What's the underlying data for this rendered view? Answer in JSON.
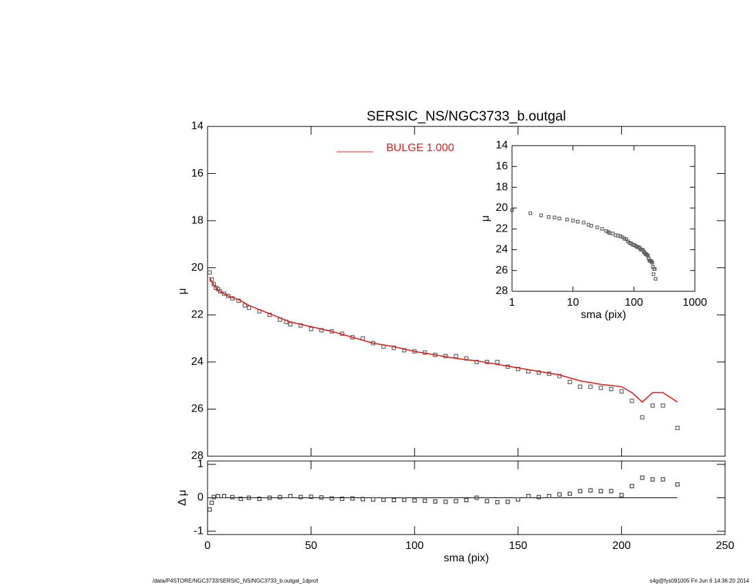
{
  "chart_data": [
    {
      "type": "scatter",
      "title": "SERSIC_NS/NGC3733_b.outgal",
      "ylabel": "μ",
      "xlim": [
        0,
        250
      ],
      "ylim": [
        28,
        14
      ],
      "yticks": [
        14,
        16,
        18,
        20,
        22,
        24,
        26,
        28
      ],
      "series": [
        {
          "color": "#606060",
          "x": [
            1,
            2,
            3,
            4,
            5,
            6,
            8,
            10,
            12,
            15,
            18,
            20,
            25,
            30,
            35,
            38,
            40,
            45,
            50,
            55,
            60,
            65,
            70,
            75,
            80,
            85,
            90,
            95,
            100,
            105,
            110,
            115,
            120,
            125,
            130,
            135,
            140,
            145,
            150,
            155,
            160,
            165,
            170,
            175,
            180,
            185,
            190,
            195,
            200,
            205,
            210,
            215,
            220,
            227
          ],
          "values": [
            20.2,
            20.5,
            20.7,
            20.85,
            20.9,
            21.0,
            21.1,
            21.2,
            21.3,
            21.4,
            21.6,
            21.7,
            21.85,
            22.0,
            22.2,
            22.3,
            22.4,
            22.45,
            22.6,
            22.65,
            22.7,
            22.8,
            22.95,
            23.0,
            23.2,
            23.35,
            23.4,
            23.5,
            23.55,
            23.6,
            23.7,
            23.75,
            23.75,
            23.85,
            24.0,
            24.0,
            24.0,
            24.2,
            24.3,
            24.4,
            24.45,
            24.5,
            24.6,
            24.85,
            25.05,
            25.05,
            25.1,
            25.15,
            25.25,
            25.65,
            26.35,
            25.85,
            25.85,
            26.8
          ]
        },
        {
          "name": "BULGE  1.000",
          "type": "line",
          "color": "#e0201b",
          "x": [
            1,
            2,
            5,
            10,
            15,
            20,
            30,
            40,
            50,
            60,
            70,
            80,
            90,
            100,
            110,
            120,
            130,
            140,
            150,
            160,
            170,
            180,
            190,
            200,
            205,
            210,
            215,
            220,
            227
          ],
          "values": [
            20.4,
            20.6,
            20.95,
            21.2,
            21.35,
            21.6,
            21.95,
            22.3,
            22.5,
            22.7,
            22.95,
            23.2,
            23.35,
            23.55,
            23.7,
            23.85,
            23.95,
            24.1,
            24.25,
            24.4,
            24.55,
            24.8,
            24.95,
            25.05,
            25.3,
            25.7,
            25.3,
            25.3,
            25.7
          ]
        }
      ]
    },
    {
      "type": "scatter",
      "xlabel": "sma (pix)",
      "ylabel": "Δ μ",
      "xlim": [
        0,
        250
      ],
      "xticks": [
        0,
        50,
        100,
        150,
        200,
        250
      ],
      "ylim": [
        -1.1,
        1.1
      ],
      "yticks": [
        -1,
        0,
        1
      ],
      "series": [
        {
          "color": "#404040",
          "x": [
            1,
            2,
            3,
            5,
            8,
            12,
            16,
            20,
            25,
            30,
            35,
            40,
            45,
            50,
            55,
            60,
            65,
            70,
            75,
            80,
            85,
            90,
            95,
            100,
            105,
            110,
            115,
            120,
            125,
            130,
            135,
            140,
            145,
            150,
            155,
            160,
            165,
            170,
            175,
            180,
            185,
            190,
            195,
            200,
            205,
            210,
            215,
            220,
            227
          ],
          "values": [
            -0.35,
            -0.15,
            0.02,
            0.05,
            0.05,
            0.02,
            -0.03,
            0.0,
            -0.03,
            0.0,
            0.02,
            0.05,
            0.02,
            0.03,
            0.01,
            -0.02,
            -0.03,
            -0.02,
            -0.04,
            -0.05,
            -0.06,
            -0.07,
            -0.06,
            -0.08,
            -0.09,
            -0.11,
            -0.12,
            -0.1,
            -0.07,
            0.0,
            -0.1,
            -0.13,
            -0.12,
            -0.05,
            0.05,
            0.02,
            0.05,
            0.1,
            0.12,
            0.2,
            0.22,
            0.2,
            0.2,
            0.08,
            0.35,
            0.6,
            0.55,
            0.55,
            0.4
          ]
        }
      ]
    },
    {
      "type": "scatter",
      "xlabel": "sma (pix)",
      "ylabel": "μ",
      "xscale": "log",
      "xlim": [
        1,
        1000
      ],
      "xticks": [
        1,
        10,
        100,
        1000
      ],
      "ylim": [
        28,
        14
      ],
      "yticks": [
        14,
        16,
        18,
        20,
        22,
        24,
        26,
        28
      ],
      "series": [
        {
          "color": "#606060",
          "x": [
            1,
            2,
            3,
            4,
            5,
            6,
            8,
            10,
            12,
            15,
            18,
            20,
            25,
            30,
            35,
            38,
            40,
            45,
            50,
            55,
            60,
            65,
            70,
            75,
            80,
            85,
            90,
            95,
            100,
            105,
            110,
            115,
            120,
            125,
            130,
            135,
            140,
            145,
            150,
            155,
            160,
            165,
            170,
            175,
            180,
            185,
            190,
            195,
            200,
            205,
            210,
            215,
            220,
            227
          ],
          "values": [
            20.2,
            20.5,
            20.7,
            20.85,
            20.9,
            21.0,
            21.1,
            21.2,
            21.3,
            21.4,
            21.6,
            21.7,
            21.85,
            22.0,
            22.2,
            22.3,
            22.4,
            22.45,
            22.6,
            22.65,
            22.7,
            22.8,
            22.95,
            23.0,
            23.2,
            23.35,
            23.4,
            23.5,
            23.55,
            23.6,
            23.7,
            23.75,
            23.75,
            23.85,
            24.0,
            24.0,
            24.0,
            24.2,
            24.3,
            24.4,
            24.45,
            24.5,
            24.6,
            24.85,
            25.05,
            25.05,
            25.1,
            25.15,
            25.25,
            25.65,
            26.35,
            25.85,
            25.85,
            26.8
          ]
        }
      ]
    }
  ],
  "footer": {
    "left": "/data/P4STORE/NGC3733/SERSIC_NS/NGC3733_b.outgal_1dprof",
    "right": "s4g@fys091005  Fri Jun  6 14:36:20 2014"
  }
}
